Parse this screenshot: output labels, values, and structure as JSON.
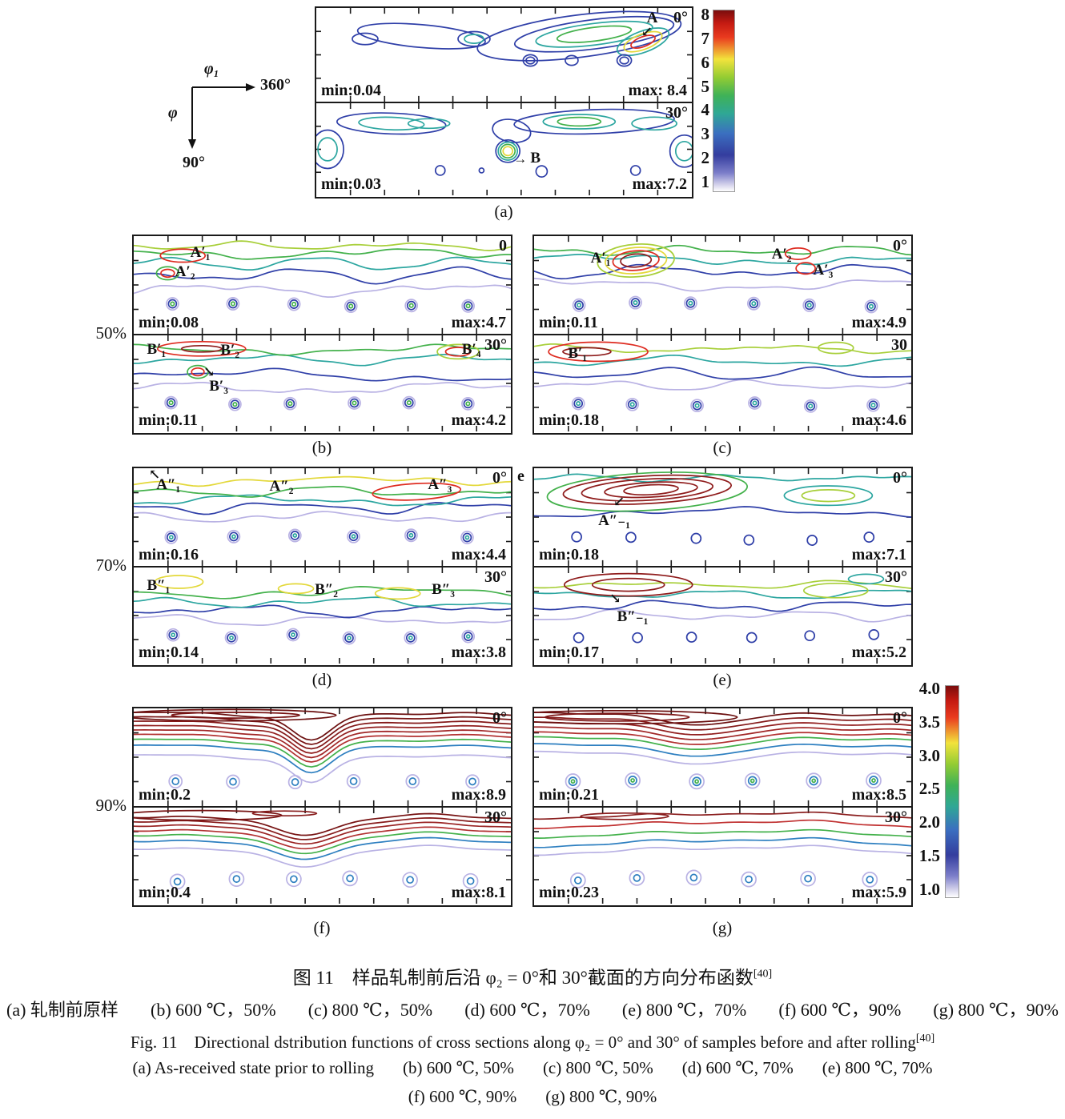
{
  "axis_legend": {
    "phi1": "φ₁",
    "deg360": "360°",
    "phi": "φ",
    "deg90": "90°"
  },
  "colorbar_a_ticks": [
    "8",
    "7",
    "6",
    "5",
    "4",
    "3",
    "2",
    "1"
  ],
  "colorbar_g_ticks": [
    "4.0",
    "3.5",
    "3.0",
    "2.5",
    "2.0",
    "1.5",
    "1.0"
  ],
  "row_labels": {
    "r50": "50%",
    "r70": "70%",
    "r90": "90%"
  },
  "stray_e": "e",
  "panels": {
    "a": {
      "label": "(a)",
      "s0": {
        "angle": "0°",
        "min": "min:0.04",
        "max": "max: 8.4",
        "ann": [
          {
            "t": "A",
            "arrow": "↙"
          }
        ]
      },
      "s1": {
        "angle": "30°",
        "min": "min:0.03",
        "max": "max:7.2",
        "ann": [
          {
            "t": "B",
            "arrow": "→"
          }
        ]
      }
    },
    "b": {
      "label": "(b)",
      "s0": {
        "angle": "0",
        "min": "min:0.08",
        "max": "max:4.7",
        "ann": [
          {
            "t": "A′₁"
          },
          {
            "t": "A′₂"
          }
        ]
      },
      "s1": {
        "angle": "30°",
        "min": "min:0.11",
        "max": "max:4.2",
        "ann": [
          {
            "t": "B′₁"
          },
          {
            "t": "B′₂"
          },
          {
            "t": "B′₃",
            "arrow": "↘"
          },
          {
            "t": "B′₄"
          }
        ]
      }
    },
    "c": {
      "label": "(c)",
      "s0": {
        "angle": "0°",
        "min": "min:0.11",
        "max": "max:4.9",
        "ann": [
          {
            "t": "A′₁"
          },
          {
            "t": "A′₂"
          },
          {
            "t": "A′₃"
          }
        ]
      },
      "s1": {
        "angle": "30",
        "min": "min:0.18",
        "max": "max:4.6",
        "ann": [
          {
            "t": "B′₁"
          }
        ]
      }
    },
    "d": {
      "label": "(d)",
      "s0": {
        "angle": "0°",
        "min": "min:0.16",
        "max": "max:4.4",
        "ann": [
          {
            "t": "A″₁",
            "arrow": "↖"
          },
          {
            "t": "A″₂"
          },
          {
            "t": "A″₃"
          }
        ]
      },
      "s1": {
        "angle": "30°",
        "min": "min:0.14",
        "max": "max:3.8",
        "ann": [
          {
            "t": "B″₁"
          },
          {
            "t": "B″₂"
          },
          {
            "t": "B″₃"
          }
        ]
      }
    },
    "e": {
      "label": "(e)",
      "s0": {
        "angle": "0°",
        "min": "min:0.18",
        "max": "max:7.1",
        "ann": [
          {
            "t": "A″₋₁",
            "arrow": "↙"
          }
        ]
      },
      "s1": {
        "angle": "30°",
        "min": "min:0.17",
        "max": "max:5.2",
        "ann": [
          {
            "t": "B″₋₁",
            "arrow": "↘"
          }
        ]
      }
    },
    "f": {
      "label": "(f)",
      "s0": {
        "angle": "0°",
        "min": "min:0.2",
        "max": "max:8.9",
        "ann": []
      },
      "s1": {
        "angle": "30°",
        "min": "min:0.4",
        "max": "max:8.1",
        "ann": []
      }
    },
    "g": {
      "label": "(g)",
      "s0": {
        "angle": "0°",
        "min": "min:0.21",
        "max": "max:8.5",
        "ann": []
      },
      "s1": {
        "angle": "30°",
        "min": "min:0.23",
        "max": "max:5.9",
        "ann": []
      }
    }
  },
  "caption": {
    "zh_title": "图 11　样品轧制前后沿 φ₂ = 0°和 30°截面的方向分布函数",
    "zh_ref": "[40]",
    "zh_items": [
      "(a) 轧制前原样",
      "(b) 600 ℃，50%",
      "(c) 800 ℃，50%",
      "(d) 600 ℃，70%",
      "(e) 800 ℃，70%",
      "(f) 600 ℃，90%",
      "(g) 800 ℃，90%"
    ],
    "en_title": "Fig. 11　Directional dstribution functions of cross sections along φ₂ = 0° and 30° of samples before and after rolling",
    "en_ref": "[40]",
    "en_items1": [
      "(a) As-received state prior to rolling",
      "(b) 600 ℃, 50%",
      "(c) 800 ℃, 50%",
      "(d) 600 ℃, 70%",
      "(e) 800 ℃, 70%"
    ],
    "en_items2": [
      "(f) 600 ℃, 90%",
      "(g) 800 ℃, 90%"
    ]
  }
}
